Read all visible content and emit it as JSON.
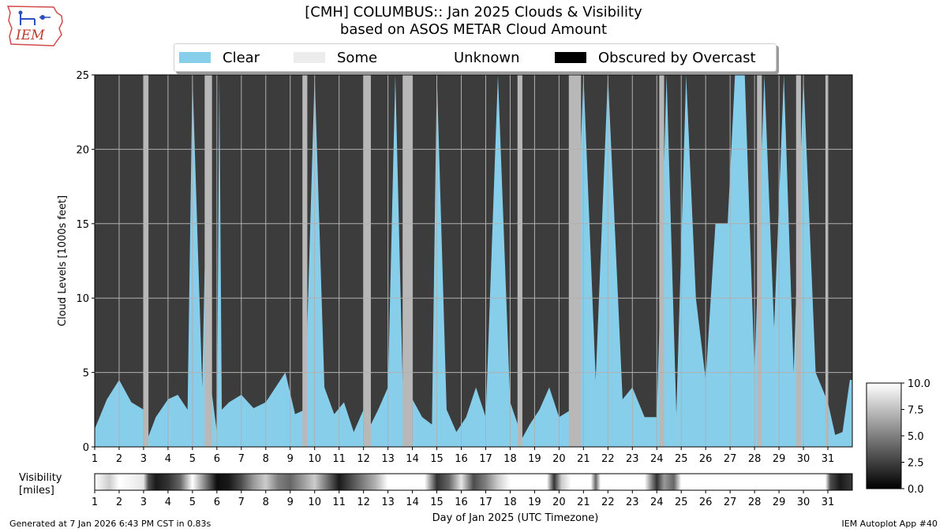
{
  "title_line1": "[CMH] COLUMBUS:: Jan 2025 Clouds & Visibility",
  "title_line2": "based on ASOS METAR Cloud Amount",
  "logo_text": "IEM",
  "legend": [
    {
      "label": "Clear",
      "color": "#87ceeb"
    },
    {
      "label": "Some",
      "color": "#ececec"
    },
    {
      "label": "Unknown",
      "color": "#ffffff"
    },
    {
      "label": "Obscured by Overcast",
      "color": "#000000"
    }
  ],
  "footer_left": "Generated at 7 Jan 2026 6:43 PM CST in 0.83s",
  "footer_right": "IEM Autoplot App #40",
  "chart_data": {
    "type": "heatmap",
    "title": "[CMH] COLUMBUS:: Jan 2025 Clouds & Visibility",
    "xlabel": "Day of Jan 2025 (UTC Timezone)",
    "ylabel": "Cloud Levels [1000s feet]",
    "visibility_label_line1": "Visibility",
    "visibility_label_line2": "[miles]",
    "xlim": [
      1,
      32
    ],
    "ylim": [
      0,
      25
    ],
    "x_ticks": [
      1,
      2,
      3,
      4,
      5,
      6,
      7,
      8,
      9,
      10,
      11,
      12,
      13,
      14,
      15,
      16,
      17,
      18,
      19,
      20,
      21,
      22,
      23,
      24,
      25,
      26,
      27,
      28,
      29,
      30,
      31
    ],
    "y_ticks": [
      0,
      5,
      10,
      15,
      20,
      25
    ],
    "colorbar_ticks": [
      "0.0",
      "2.5",
      "5.0",
      "7.5",
      "10.0"
    ],
    "colorbar_range": [
      0,
      10
    ],
    "colors": {
      "clear": "#87ceeb",
      "overcast_cloud": "#3c3c3c",
      "broken_cloud": "#b8b8b8",
      "grid": "#b0b0b0"
    },
    "clear_to_cloud_base_kft": [
      [
        1.0,
        1.2
      ],
      [
        1.5,
        3.2
      ],
      [
        2.0,
        4.5
      ],
      [
        2.5,
        3.0
      ],
      [
        3.0,
        2.5
      ],
      [
        3.2,
        0.7
      ],
      [
        3.5,
        2.0
      ],
      [
        4.0,
        3.2
      ],
      [
        4.4,
        3.5
      ],
      [
        4.8,
        2.5
      ],
      [
        5.0,
        25
      ],
      [
        5.4,
        4.0
      ],
      [
        5.5,
        12
      ],
      [
        5.8,
        3.5
      ],
      [
        6.0,
        1.0
      ],
      [
        6.1,
        25
      ],
      [
        6.2,
        2.5
      ],
      [
        6.5,
        3.0
      ],
      [
        7.0,
        3.5
      ],
      [
        7.5,
        2.6
      ],
      [
        8.0,
        3.0
      ],
      [
        8.4,
        4.0
      ],
      [
        8.8,
        5.0
      ],
      [
        9.2,
        2.2
      ],
      [
        9.6,
        2.5
      ],
      [
        10.0,
        25
      ],
      [
        10.4,
        4.0
      ],
      [
        10.8,
        2.2
      ],
      [
        11.2,
        3.0
      ],
      [
        11.6,
        1.0
      ],
      [
        12.0,
        2.5
      ],
      [
        12.3,
        1.5
      ],
      [
        12.6,
        2.5
      ],
      [
        13.0,
        4.0
      ],
      [
        13.3,
        25
      ],
      [
        13.6,
        4.5
      ],
      [
        14.0,
        3.2
      ],
      [
        14.4,
        2.0
      ],
      [
        14.8,
        1.5
      ],
      [
        15.0,
        25
      ],
      [
        15.4,
        2.5
      ],
      [
        15.8,
        1.0
      ],
      [
        16.2,
        2.0
      ],
      [
        16.6,
        4.0
      ],
      [
        17.0,
        2.0
      ],
      [
        17.5,
        25
      ],
      [
        18.0,
        3.0
      ],
      [
        18.5,
        0.6
      ],
      [
        18.8,
        1.5
      ],
      [
        19.2,
        2.5
      ],
      [
        19.6,
        4.0
      ],
      [
        20.0,
        2.0
      ],
      [
        20.5,
        2.5
      ],
      [
        21.0,
        25
      ],
      [
        21.5,
        4.5
      ],
      [
        22.0,
        25
      ],
      [
        22.6,
        3.2
      ],
      [
        23.0,
        4.0
      ],
      [
        23.5,
        2.0
      ],
      [
        24.0,
        2.0
      ],
      [
        24.4,
        25
      ],
      [
        24.8,
        2.2
      ],
      [
        25.2,
        25
      ],
      [
        25.6,
        10.0
      ],
      [
        26.0,
        4.5
      ],
      [
        26.4,
        15
      ],
      [
        26.9,
        15
      ],
      [
        27.2,
        25
      ],
      [
        27.6,
        25
      ],
      [
        28.0,
        5.0
      ],
      [
        28.4,
        25
      ],
      [
        28.8,
        8.0
      ],
      [
        29.2,
        25
      ],
      [
        29.6,
        5.0
      ],
      [
        30.0,
        25
      ],
      [
        30.5,
        5.0
      ],
      [
        31.0,
        3.0
      ],
      [
        31.3,
        0.8
      ],
      [
        31.6,
        1.0
      ],
      [
        31.9,
        4.5
      ]
    ],
    "broken_cloud_periods": [
      [
        3.0,
        3.2
      ],
      [
        5.5,
        5.8
      ],
      [
        9.5,
        9.7
      ],
      [
        12.0,
        12.3
      ],
      [
        13.6,
        14.0
      ],
      [
        18.3,
        18.5
      ],
      [
        20.4,
        20.9
      ],
      [
        24.1,
        24.3
      ],
      [
        28.1,
        28.3
      ],
      [
        29.7,
        29.9
      ],
      [
        30.9,
        31.0
      ]
    ],
    "visibility_miles": [
      [
        1.0,
        10
      ],
      [
        1.6,
        8
      ],
      [
        2.0,
        10
      ],
      [
        3.0,
        9
      ],
      [
        3.2,
        3
      ],
      [
        3.5,
        1
      ],
      [
        4.0,
        2
      ],
      [
        4.5,
        4
      ],
      [
        5.0,
        10
      ],
      [
        6.0,
        0.5
      ],
      [
        6.5,
        1
      ],
      [
        7.0,
        3
      ],
      [
        7.5,
        6
      ],
      [
        8.0,
        8
      ],
      [
        8.5,
        5
      ],
      [
        9.0,
        4
      ],
      [
        9.5,
        6
      ],
      [
        10.0,
        8
      ],
      [
        11.0,
        1
      ],
      [
        11.5,
        3
      ],
      [
        12.0,
        5
      ],
      [
        12.5,
        7
      ],
      [
        13.0,
        10
      ],
      [
        14.5,
        10
      ],
      [
        15.0,
        2
      ],
      [
        15.5,
        4
      ],
      [
        16.0,
        9
      ],
      [
        16.5,
        3
      ],
      [
        17.0,
        5
      ],
      [
        17.5,
        8
      ],
      [
        18.0,
        10
      ],
      [
        19.5,
        10
      ],
      [
        19.8,
        2
      ],
      [
        20.1,
        8
      ],
      [
        20.5,
        10
      ],
      [
        21.3,
        10
      ],
      [
        21.5,
        4
      ],
      [
        21.7,
        10
      ],
      [
        23.5,
        10
      ],
      [
        23.8,
        5
      ],
      [
        24.0,
        2
      ],
      [
        24.3,
        6
      ],
      [
        24.7,
        4
      ],
      [
        25.0,
        10
      ],
      [
        30.9,
        10
      ],
      [
        31.1,
        3
      ],
      [
        31.5,
        1
      ],
      [
        31.9,
        2
      ]
    ]
  }
}
